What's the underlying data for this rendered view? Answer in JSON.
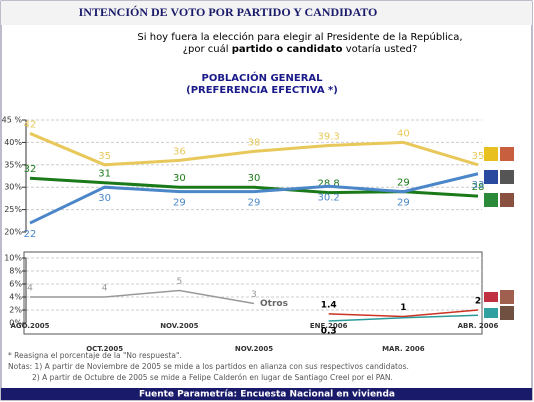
{
  "chart_data": {
    "type": "line",
    "title": "INTENCIÓN DE VOTO POR PARTIDO Y CANDIDATO",
    "question": [
      "Si hoy fuera la elección para elegir al Presidente de la República,",
      "¿por cuál ",
      "partido o candidato",
      " votaría usted?"
    ],
    "chart_title": "POBLACIÓN GENERAL",
    "chart_subtitle": "(PREFERENCIA EFECTIVA *)",
    "categories": [
      "AGO.2005",
      "OCT.2005",
      "NOV.2005",
      "NOV.2005",
      "ENE.2006",
      "MAR. 2006",
      "ABR. 2006"
    ],
    "panels": [
      {
        "ylim": [
          20,
          45
        ],
        "yticks": [
          {
            "value": 20,
            "label": "20%"
          },
          {
            "value": 25,
            "label": "25%"
          },
          {
            "value": 30,
            "label": "30%"
          },
          {
            "value": 35,
            "label": "35%"
          },
          {
            "value": 40,
            "label": "40%"
          },
          {
            "value": 45,
            "label": "45 %"
          }
        ],
        "series": [
          {
            "color": "#e8c85a",
            "values": [
              42,
              35,
              36,
              38,
              39.3,
              40,
              35
            ]
          },
          {
            "color": "#1a7a1a",
            "values": [
              32,
              31,
              30,
              30,
              28.8,
              29,
              28
            ]
          },
          {
            "color": "#4a86c8",
            "values": [
              22,
              30,
              29,
              29,
              30.2,
              29,
              33
            ]
          }
        ]
      },
      {
        "ylim": [
          0,
          10
        ],
        "yticks": [
          {
            "value": 0,
            "label": "0%"
          },
          {
            "value": 2,
            "label": "2%"
          },
          {
            "value": 4,
            "label": "4%"
          },
          {
            "value": 6,
            "label": "6%"
          },
          {
            "value": 8,
            "label": "8%"
          },
          {
            "value": 10,
            "label": "10%"
          }
        ],
        "series": [
          {
            "name": "Otros",
            "color": "#999999",
            "values": [
              4,
              4,
              5,
              3,
              null,
              null,
              null
            ]
          },
          {
            "color": "#cc3322",
            "values": [
              null,
              null,
              null,
              null,
              1.4,
              1,
              2
            ]
          },
          {
            "color": "#2a9a9a",
            "values": [
              null,
              null,
              null,
              null,
              0.3,
              0.8,
              1.2
            ],
            "value_labels": [
              null,
              null,
              null,
              null,
              "0.3",
              null,
              null
            ]
          }
        ]
      }
    ],
    "notes": [
      "* Reasigna el porcentaje de la \"No respuesta\".",
      "Notas: 1) A partir de Noviembre de 2005  se mide a los partidos en alianza con sus respectivos candidatos.",
      "2) A partir de Octubre de 2005 se mide a Felipe Calderón en lugar de Santiago Creel por el PAN."
    ],
    "source": "Fuente Parametría: Encuesta Nacional en vivienda"
  }
}
